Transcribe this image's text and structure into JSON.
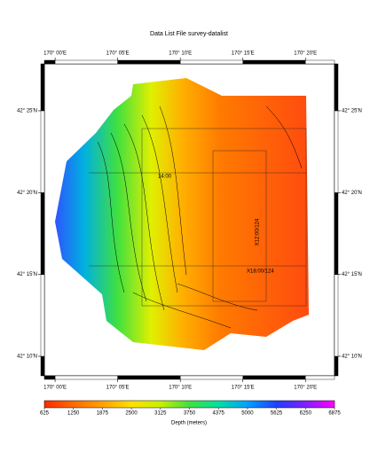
{
  "chart_data": {
    "type": "map",
    "title": "Data List File survey-datalist",
    "xlim": [
      169.9857,
      170.372
    ],
    "ylim": [
      42.1468,
      42.4645
    ],
    "xticks": [
      {
        "value": 170.0,
        "label": "170° 00'E"
      },
      {
        "value": 170.0833,
        "label": "170° 05'E"
      },
      {
        "value": 170.1667,
        "label": "170° 10'E"
      },
      {
        "value": 170.25,
        "label": "170° 15'E"
      },
      {
        "value": 170.3333,
        "label": "170° 20'E"
      }
    ],
    "yticks": [
      {
        "value": 42.1667,
        "label": "42° 10'N"
      },
      {
        "value": 42.25,
        "label": "42° 15'N"
      },
      {
        "value": 42.3333,
        "label": "42° 20'N"
      },
      {
        "value": 42.4167,
        "label": "42° 25'N"
      }
    ],
    "annotations": [
      "14:00",
      "X12:00/124",
      "X18:00/124"
    ],
    "colorbar": {
      "label": "Depth (meters)",
      "lim": [
        625,
        6875
      ],
      "ticks": [
        625,
        1250,
        1875,
        2500,
        3125,
        3750,
        4375,
        5000,
        5625,
        6250,
        6875
      ],
      "colors": [
        "#ff2a00",
        "#ff6a00",
        "#ffa000",
        "#ffe000",
        "#c8f000",
        "#40e040",
        "#00e0a0",
        "#00a0ff",
        "#2040ff",
        "#8020ff",
        "#ff00ff"
      ]
    }
  }
}
